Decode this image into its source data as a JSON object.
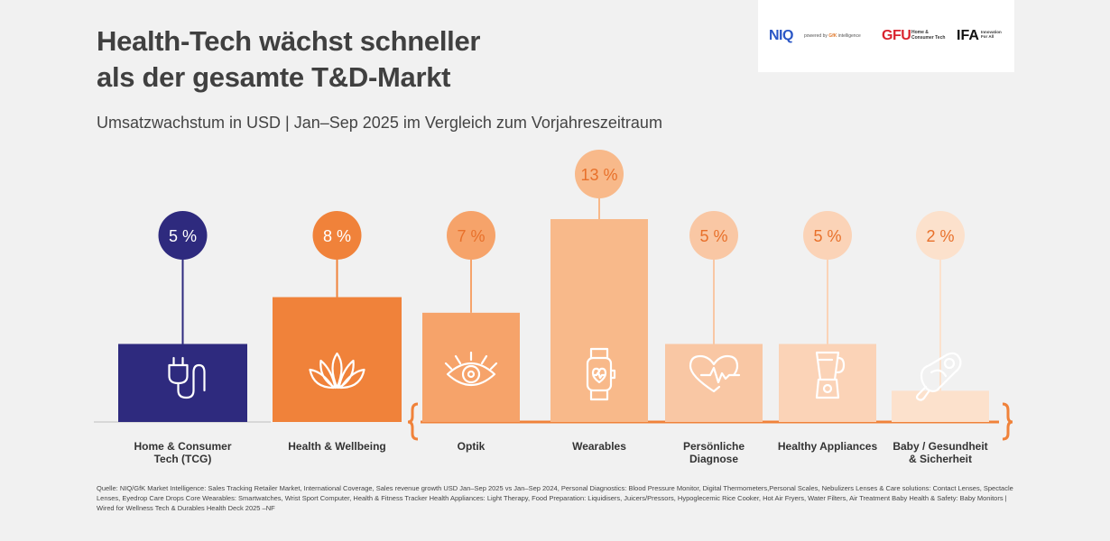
{
  "header": {
    "title_line1": "Health-Tech wächst schneller",
    "title_line2": "als der gesamte T&D-Markt",
    "subtitle": "Umsatzwachstum in USD | Jan–Sep 2025 im Vergleich zum Vorjahreszeitraum"
  },
  "logos": {
    "niq": "NIQ",
    "niq_sub_prefix": "powered by",
    "niq_sub_gfk": "GfK",
    "niq_sub_suffix": "intelligence",
    "gfu": "GFU",
    "gfu_sub": "Home & Consumer Tech",
    "ifa": "IFA",
    "ifa_sub": "Innovation For All"
  },
  "chart_data": {
    "type": "bar",
    "unit": "%",
    "categories": [
      [
        "Home & Consumer",
        "Tech (TCG)"
      ],
      [
        "Health & Wellbeing"
      ],
      [
        "Optik"
      ],
      [
        "Wearables"
      ],
      [
        "Persönliche",
        "Diagnose"
      ],
      [
        "Healthy Appliances"
      ],
      [
        "Baby / Gesundheit",
        "& Sicherheit"
      ]
    ],
    "values": [
      5,
      8,
      7,
      13,
      5,
      5,
      2
    ],
    "labels": [
      "5 %",
      "8 %",
      "7 %",
      "13 %",
      "5 %",
      "5 %",
      "2 %"
    ],
    "icons": [
      "plug-icon",
      "lotus-icon",
      "eye-icon",
      "smartwatch-icon",
      "heart-pulse-icon",
      "blender-icon",
      "pacifier-icon"
    ],
    "colors": [
      "#2e2a7e",
      "#f0823a",
      "#f6a36a",
      "#f8b98a",
      "#f9c7a4",
      "#fbd3b7",
      "#fce1cc"
    ],
    "bubble_text_colors": [
      "#ffffff",
      "#ffffff",
      "#e8702a",
      "#e8702a",
      "#e8702a",
      "#e8702a",
      "#e8702a"
    ],
    "bracket_color": "#f0823a",
    "ylim": [
      0,
      13
    ]
  },
  "footer": {
    "source": "Quelle: NIQ/GfK Market Intelligence: Sales Tracking Retailer Market, International Coverage, Sales revenue growth  USD Jan–Sep 2025 vs Jan–Sep 2024, Personal Diagnostics: Blood Pressure Monitor, Digital Thermometers,Personal Scales, Nebulizers Lenses & Care solutions: Contact Lenses, Spectacle Lenses, Eyedrop Care Drops Core Wearables: Smartwatches, Wrist Sport Computer, Health & Fitness Tracker Health Appliances: Light Therapy, Food Preparation: Liquidisers, Juicers/Pressors, Hypoglecemic Rice Cooker, Hot Air Fryers, Water Filters, Air Treatment Baby Health & Safety: Baby Monitors | Wired for Wellness Tech & Durables Health Deck 2025 –NF"
  }
}
